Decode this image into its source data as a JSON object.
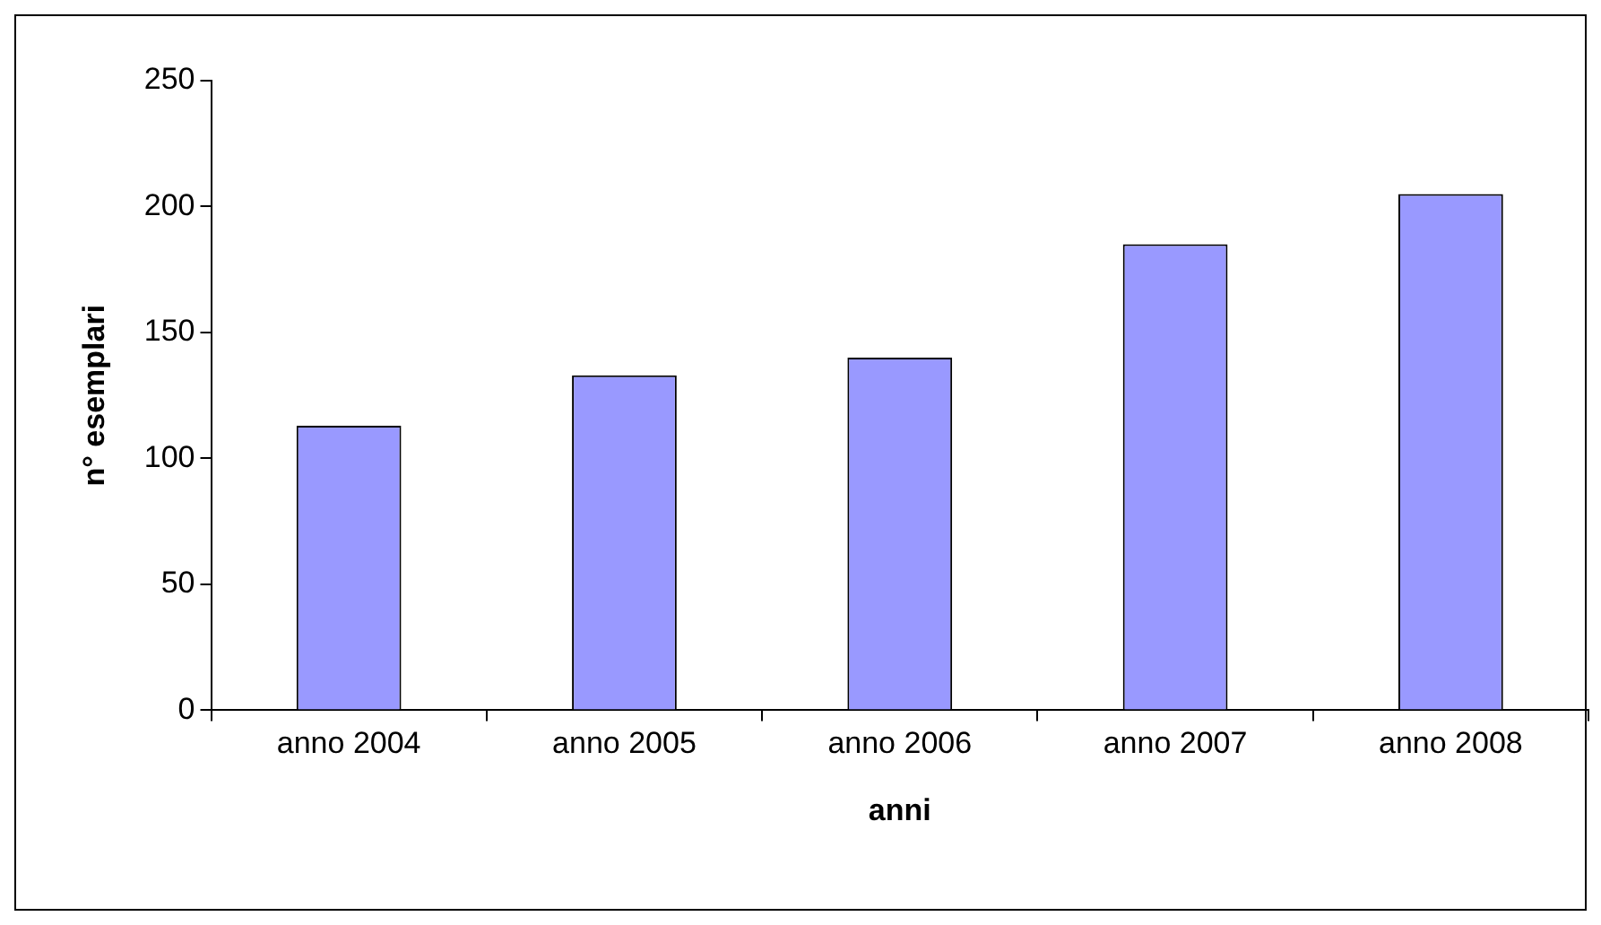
{
  "chart_data": {
    "type": "bar",
    "xlabel": "anni",
    "ylabel": "n° esemplari",
    "categories": [
      "anno 2004",
      "anno 2005",
      "anno 2006",
      "anno 2007",
      "anno 2008"
    ],
    "values": [
      113,
      133,
      140,
      185,
      205
    ],
    "color": "#9999ff",
    "ylim": [
      0,
      250
    ],
    "yticks": [
      0,
      50,
      100,
      150,
      200,
      250
    ],
    "grid": false,
    "legend": false
  }
}
